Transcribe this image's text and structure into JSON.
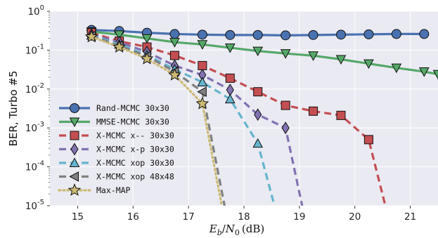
{
  "chart_data": {
    "type": "line",
    "title": "",
    "xlabel_parts": {
      "E": "E",
      "b": "b",
      "slash": "/",
      "N": "N",
      "zero": "0",
      "unit": "(dB)"
    },
    "ylabel": "BER, Turbo #5",
    "xlim": [
      14.5,
      21.5
    ],
    "ylim_exponents": [
      -5,
      0
    ],
    "yscale": "log",
    "grid": true,
    "legend_position": "bottom-left",
    "x_ticks": [
      "15",
      "16",
      "17",
      "18",
      "19",
      "20",
      "21"
    ],
    "y_ticks": [
      {
        "base": "10",
        "exp": "0"
      },
      {
        "base": "10",
        "exp": "-1"
      },
      {
        "base": "10",
        "exp": "-2"
      },
      {
        "base": "10",
        "exp": "-3"
      },
      {
        "base": "10",
        "exp": "-4"
      },
      {
        "base": "10",
        "exp": "-5"
      }
    ],
    "series": [
      {
        "name": "Rand-MCMC 30x30",
        "color": "#4a72b0",
        "dash": "solid",
        "marker": "circle",
        "x": [
          15.25,
          15.75,
          16.25,
          16.75,
          17.25,
          17.75,
          18.25,
          18.75,
          19.25,
          19.75,
          20.25,
          20.75,
          21.25
        ],
        "y": [
          0.33,
          0.31,
          0.28,
          0.26,
          0.25,
          0.245,
          0.245,
          0.24,
          0.245,
          0.25,
          0.255,
          0.26,
          0.26
        ]
      },
      {
        "name": "MMSE-MCMC 30x30",
        "color": "#55a868",
        "dash": "solid",
        "marker": "triangle-down",
        "x": [
          15.25,
          15.75,
          16.25,
          16.75,
          17.25,
          17.75,
          18.25,
          18.75,
          19.25,
          19.75,
          20.25,
          20.75,
          21.25,
          21.5
        ],
        "y": [
          0.3,
          0.25,
          0.2,
          0.16,
          0.14,
          0.115,
          0.095,
          0.082,
          0.072,
          0.058,
          0.045,
          0.035,
          0.028,
          0.024
        ]
      },
      {
        "name": "X-MCMC x-- 30x30",
        "color": "#c44e52",
        "dash": "dash",
        "marker": "square",
        "x": [
          15.25,
          15.75,
          16.25,
          16.75,
          17.25,
          17.75,
          18.25,
          18.75,
          19.25,
          19.75,
          20.25,
          20.55
        ],
        "y": [
          0.28,
          0.17,
          0.12,
          0.073,
          0.04,
          0.019,
          0.0085,
          0.0038,
          0.0027,
          0.0021,
          0.0005,
          1e-05
        ]
      },
      {
        "name": "X-MCMC x-p 30x30",
        "color": "#8172b2",
        "dash": "dash",
        "marker": "diamond",
        "x": [
          15.25,
          15.75,
          16.25,
          16.75,
          17.25,
          17.75,
          18.25,
          18.75,
          19.05
        ],
        "y": [
          0.25,
          0.16,
          0.09,
          0.04,
          0.023,
          0.0095,
          0.0022,
          0.001,
          1e-05
        ]
      },
      {
        "name": "X-MCMC xop 30x30",
        "color": "#64b5cd",
        "dash": "dash",
        "marker": "triangle-up",
        "x": [
          15.25,
          15.75,
          16.25,
          16.75,
          17.25,
          17.75,
          18.25,
          18.55
        ],
        "y": [
          0.24,
          0.14,
          0.075,
          0.032,
          0.015,
          0.0055,
          0.0004,
          1e-05
        ]
      },
      {
        "name": "X-MCMC xop 48x48",
        "color": "#808080",
        "dash": "dash",
        "marker": "triangle-left",
        "x": [
          15.25,
          15.75,
          16.25,
          16.75,
          17.25,
          17.65
        ],
        "y": [
          0.23,
          0.13,
          0.07,
          0.028,
          0.0085,
          1e-05
        ]
      },
      {
        "name": "Max-MAP",
        "color": "#ccb974",
        "dash": "dot",
        "marker": "star",
        "x": [
          15.25,
          15.75,
          16.25,
          16.75,
          17.25,
          17.6
        ],
        "y": [
          0.22,
          0.12,
          0.06,
          0.023,
          0.0042,
          1e-05
        ]
      }
    ]
  }
}
